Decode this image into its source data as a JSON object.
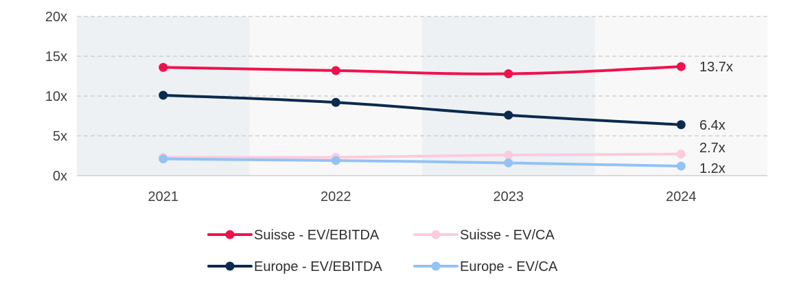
{
  "chart_data": {
    "type": "line",
    "x": [
      "2021",
      "2022",
      "2023",
      "2024"
    ],
    "y_ticks": [
      "0x",
      "5x",
      "10x",
      "15x",
      "20x"
    ],
    "ylim": [
      0,
      20
    ],
    "grid": "horizontal dashed",
    "series": [
      {
        "name": "Suisse - EV/EBITDA",
        "color": "#f0114c",
        "values": [
          13.6,
          13.2,
          12.8,
          13.7
        ],
        "end_label": "13.7x"
      },
      {
        "name": "Suisse - EV/CA",
        "color": "#fdcbdc",
        "values": [
          2.3,
          2.3,
          2.6,
          2.7
        ],
        "end_label": "2.7x"
      },
      {
        "name": "Europe - EV/EBITDA",
        "color": "#0b2a4e",
        "values": [
          10.1,
          9.2,
          7.6,
          6.4
        ],
        "end_label": "6.4x"
      },
      {
        "name": "Europe - EV/CA",
        "color": "#93c2f5",
        "values": [
          2.1,
          1.9,
          1.6,
          1.2
        ],
        "end_label": "1.2x"
      }
    ],
    "legend": "bottom"
  }
}
